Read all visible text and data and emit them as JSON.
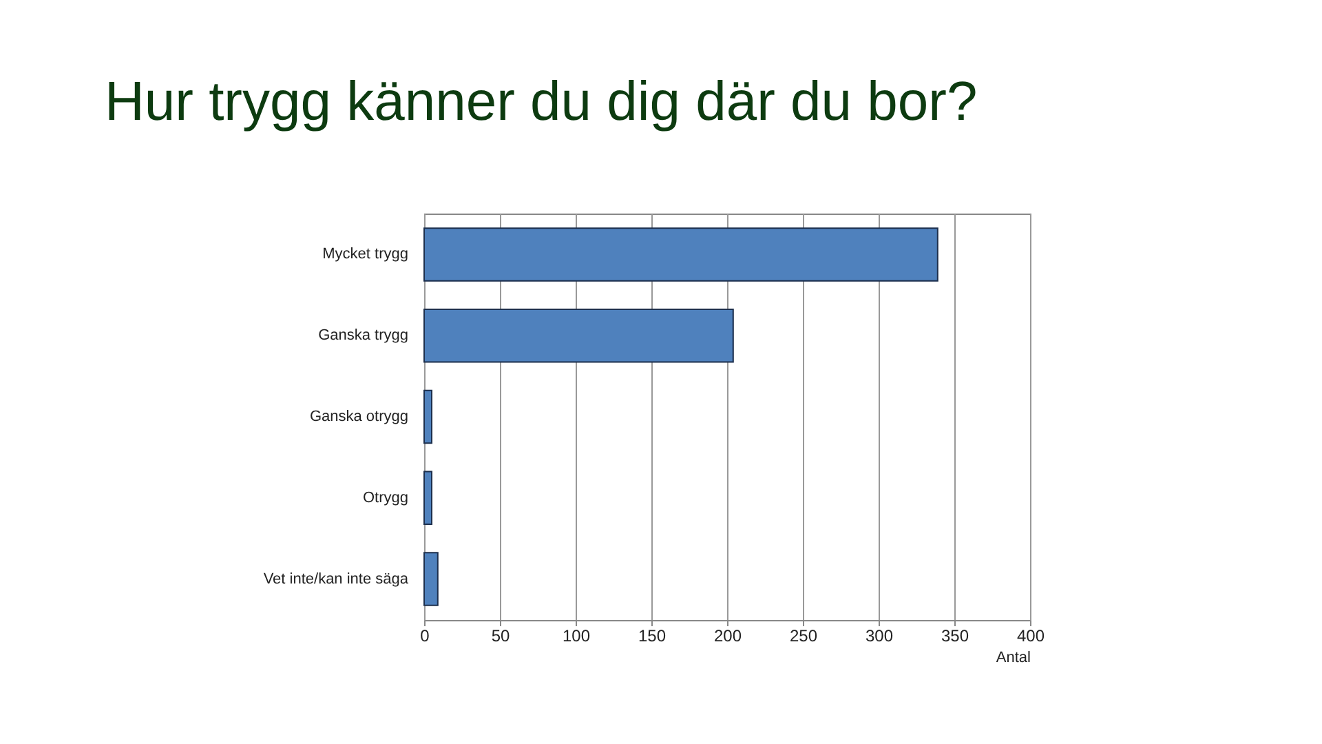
{
  "chart_data": {
    "type": "bar",
    "title": "Hur trygg känner du dig där du bor?",
    "orientation": "horizontal",
    "xlabel": "Antal",
    "categories": [
      "Mycket trygg",
      "Ganska trygg",
      "Ganska otrygg",
      "Otrygg",
      "Vet inte/kan inte säga"
    ],
    "values": [
      339,
      204,
      5,
      5,
      9
    ],
    "color": "#4f81bd",
    "xlim": [
      0,
      400
    ],
    "xticks": [
      0,
      50,
      100,
      150,
      200,
      250,
      300,
      350,
      400
    ],
    "grid": "x"
  }
}
